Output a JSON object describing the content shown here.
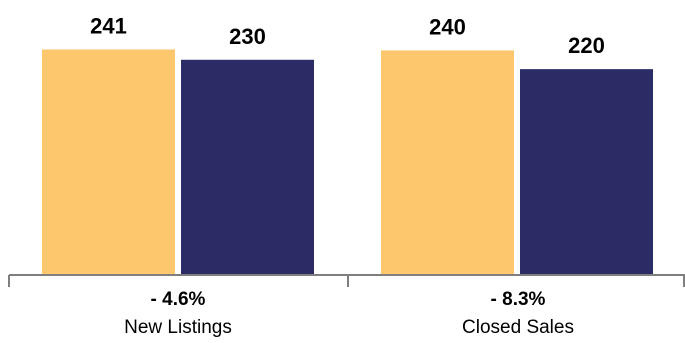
{
  "chart_data": {
    "type": "bar",
    "categories": [
      "New Listings",
      "Closed Sales"
    ],
    "changes": [
      "- 4.6%",
      "- 8.3%"
    ],
    "series": [
      {
        "values": [
          241,
          240
        ],
        "color": "#FDC76E"
      },
      {
        "values": [
          230,
          220
        ],
        "color": "#2B2B66"
      }
    ],
    "ylim": [
      0,
      280
    ],
    "grid": false,
    "legend": "none",
    "axis_color": "#7F7F7F"
  }
}
